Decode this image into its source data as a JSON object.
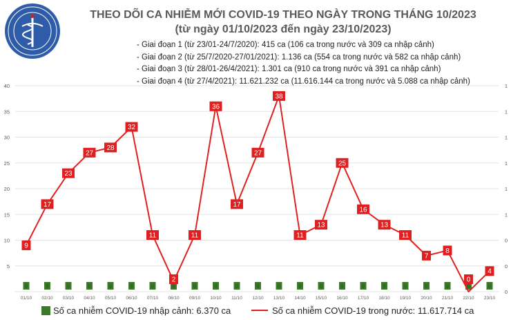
{
  "logo": {
    "text": "BỘ Y TẾ",
    "subtext": "MINISTRY OF HEALTH"
  },
  "header": {
    "title_line1": "THEO DÕI CA NHIỄM MỚI COVID-19 THEO NGÀY TRONG THÁNG 10/2023",
    "title_line2": "(từ ngày 01/10/2023 đến ngày 23/10/2023)"
  },
  "notes": [
    "- Giai đoạn 1 (từ 23/01-24/7/2020): 415 ca (106 ca trong nước và 309 ca nhập cảnh)",
    "- Giai đoạn 2 (từ 25/7/2020-27/01/2021): 1.136 ca (554 ca trong nước và 582 ca nhập cảnh)",
    "- Giai đoạn 3 (từ 28/01-26/4/2021): 1.301 ca (910 ca trong nước và 391 ca nhập cảnh)",
    "- Giai đoạn 4 (từ 27/4/2021): 11.621.232 ca (11.616.144 ca trong nước và 5.088 ca nhập cảnh)"
  ],
  "legend": {
    "bar_label": "Số ca nhiễm COVID-19 nhập cảnh: 6.370 ca",
    "line_label": "Số ca nhiễm COVID-19 trong nước: 11.617.714 ca"
  },
  "colors": {
    "line": "#e02020",
    "bar": "#3b7a2a",
    "bar_label": "#1e4d12",
    "grid": "#e3e3e3",
    "axis_text": "#595959"
  },
  "chart_data": {
    "type": "line",
    "categories": [
      "01/10",
      "02/10",
      "03/10",
      "04/10",
      "05/10",
      "06/10",
      "07/10",
      "08/10",
      "09/10",
      "10/10",
      "11/10",
      "12/10",
      "13/10",
      "14/10",
      "15/10",
      "16/10",
      "17/10",
      "18/10",
      "19/10",
      "20/10",
      "21/10",
      "22/10",
      "23/10"
    ],
    "series": [
      {
        "name": "Số ca nhiễm COVID-19 trong nước",
        "kind": "line",
        "values": [
          9,
          17,
          23,
          27,
          28,
          32,
          11,
          2,
          11,
          36,
          17,
          27,
          38,
          11,
          13,
          25,
          16,
          13,
          11,
          7,
          8,
          0,
          4
        ]
      },
      {
        "name": "Số ca nhiễm COVID-19 nhập cảnh",
        "kind": "bar",
        "values": [
          0,
          0,
          0,
          0,
          0,
          0,
          0,
          0,
          0,
          0,
          0,
          0,
          0,
          0,
          0,
          0,
          0,
          0,
          0,
          0,
          0,
          0,
          0
        ]
      }
    ],
    "y_ticks": [
      "40",
      "35",
      "30",
      "25",
      "20",
      "15",
      "10",
      "5",
      ""
    ],
    "right_ticks": [
      "1",
      "1",
      "1",
      "1",
      "1",
      "1",
      "0",
      "0",
      "0"
    ],
    "ylim": [
      0,
      40
    ],
    "grid": true,
    "legend_position": "bottom"
  }
}
